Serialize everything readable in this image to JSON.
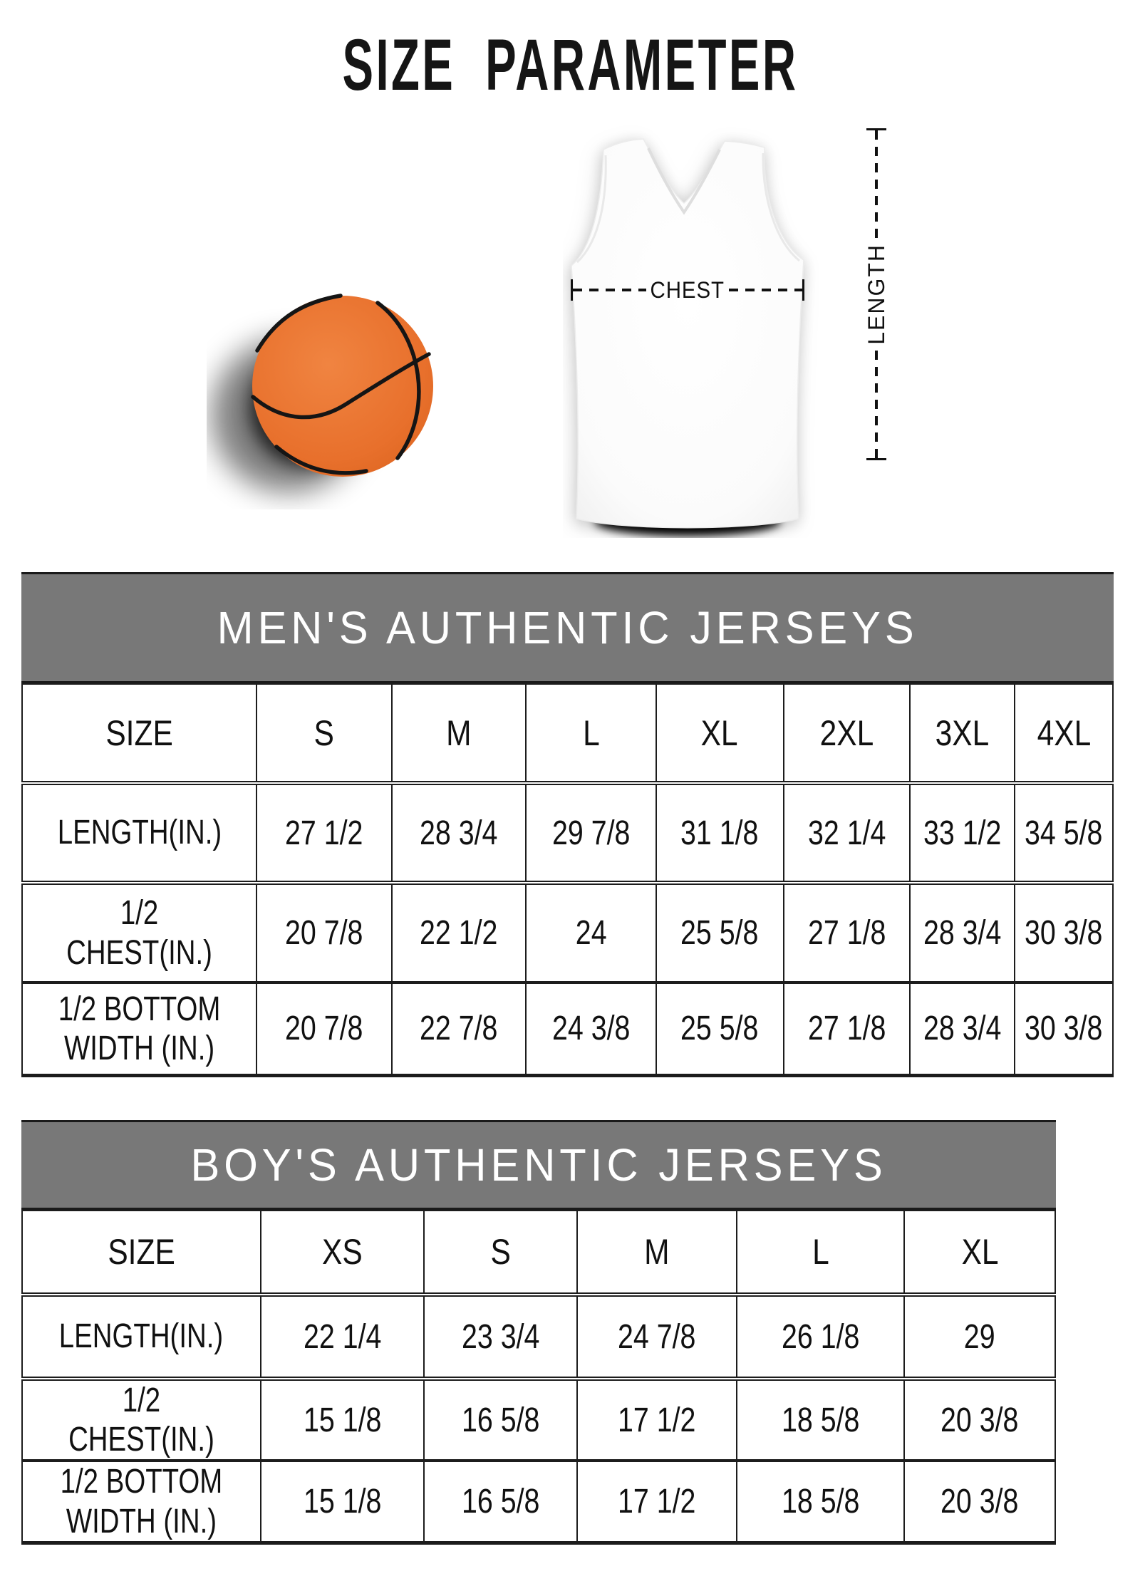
{
  "title": "SIZE PARAMETER",
  "diagram": {
    "chest_label": "CHEST",
    "length_label": "LENGTH",
    "basketball_icon": "basketball-illustration",
    "jersey_icon": "jersey-illustration"
  },
  "tables": [
    {
      "title": "MEN'S AUTHENTIC JERSEYS",
      "size_label": "SIZE",
      "columns": [
        "S",
        "M",
        "L",
        "XL",
        "2XL",
        "3XL",
        "4XL"
      ],
      "rows": [
        {
          "label": "LENGTH(IN.)",
          "values": [
            "27 1/2",
            "28 3/4",
            "29 7/8",
            "31 1/8",
            "32 1/4",
            "33 1/2",
            "34 5/8"
          ]
        },
        {
          "label": "1/2 CHEST(IN.)",
          "values": [
            "20 7/8",
            "22 1/2",
            "24",
            "25 5/8",
            "27 1/8",
            "28 3/4",
            "30 3/8"
          ]
        },
        {
          "label": "1/2 BOTTOM WIDTH (IN.)",
          "values": [
            "20 7/8",
            "22 7/8",
            "24 3/8",
            "25 5/8",
            "27 1/8",
            "28 3/4",
            "30 3/8"
          ]
        }
      ]
    },
    {
      "title": "BOY'S AUTHENTIC JERSEYS",
      "size_label": "SIZE",
      "columns": [
        "XS",
        "S",
        "M",
        "L",
        "XL"
      ],
      "rows": [
        {
          "label": "LENGTH(IN.)",
          "values": [
            "22 1/4",
            "23 3/4",
            "24 7/8",
            "26 1/8",
            "29"
          ]
        },
        {
          "label": "1/2 CHEST(IN.)",
          "values": [
            "15 1/8",
            "16 5/8",
            "17 1/2",
            "18 5/8",
            "20 3/8"
          ]
        },
        {
          "label": "1/2 BOTTOM WIDTH (IN.)",
          "values": [
            "15 1/8",
            "16 5/8",
            "17 1/2",
            "18 5/8",
            "20 3/8"
          ]
        }
      ]
    }
  ],
  "colors": {
    "header_bg": "#787878",
    "header_text": "#ffffff",
    "border": "#1c1c1c",
    "text": "#111111",
    "ball_orange": "#e8702c",
    "seam_black": "#151515"
  }
}
